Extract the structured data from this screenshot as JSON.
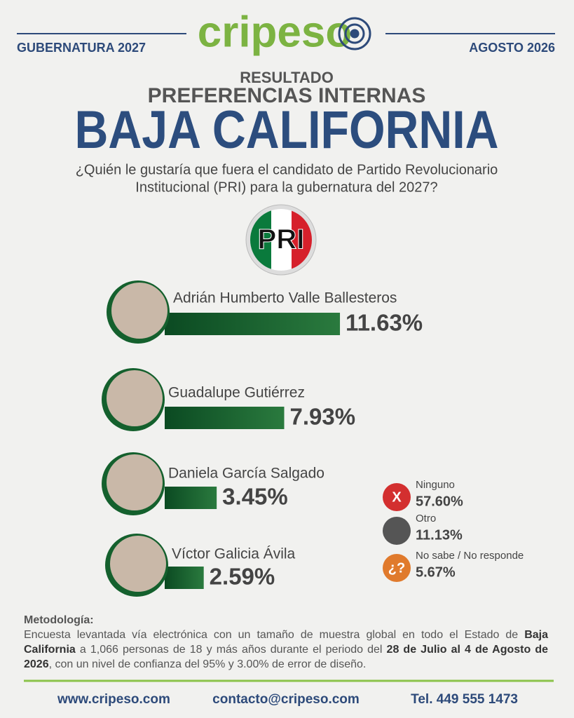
{
  "header": {
    "left": "GUBERNATURA 2027",
    "right": "AGOSTO 2026",
    "logo": "cripeso"
  },
  "chart_data": {
    "type": "bar",
    "orientation": "horizontal",
    "supertitle": "RESULTADO",
    "subtitle": "PREFERENCIAS INTERNAS",
    "title": "BAJA CALIFORNIA",
    "question": [
      "¿Quién le gustaría que fuera el candidato de Partido Revolucionario",
      "Institucional (PRI) para la gubernatura del 2027?"
    ],
    "party_logo": "PRI",
    "categories": [
      "Adrián Humberto Valle Ballesteros",
      "Guadalupe Gutiérrez",
      "Daniela García Salgado",
      "Víctor Galicia Ávila"
    ],
    "values": [
      11.63,
      7.93,
      3.45,
      2.59
    ],
    "value_labels": [
      "11.63%",
      "7.93%",
      "3.45%",
      "2.59%"
    ],
    "color": "#14602d"
  },
  "other_responses": [
    {
      "label": "Ninguno",
      "value": "57.60%",
      "icon": "X"
    },
    {
      "label": "Otro",
      "value": "11.13%",
      "icon": ""
    },
    {
      "label": "No sabe / No responde",
      "value": "5.67%",
      "icon": "¿?"
    }
  ],
  "methodology": {
    "heading": "Metodología:",
    "parts": [
      "Encuesta levantada vía electrónica con un tamaño de muestra global en todo el Estado de ",
      "Baja California",
      " a 1,066 personas de 18 y más años durante el periodo del ",
      "28 de Julio al 4 de Agosto de 2026",
      ", con un nivel de confianza del 95% y 3.00% de error de diseño."
    ]
  },
  "footer": {
    "web": "www.cripeso.com",
    "email": "contacto@cripeso.com",
    "phone": "Tel. 449 555 1473"
  }
}
